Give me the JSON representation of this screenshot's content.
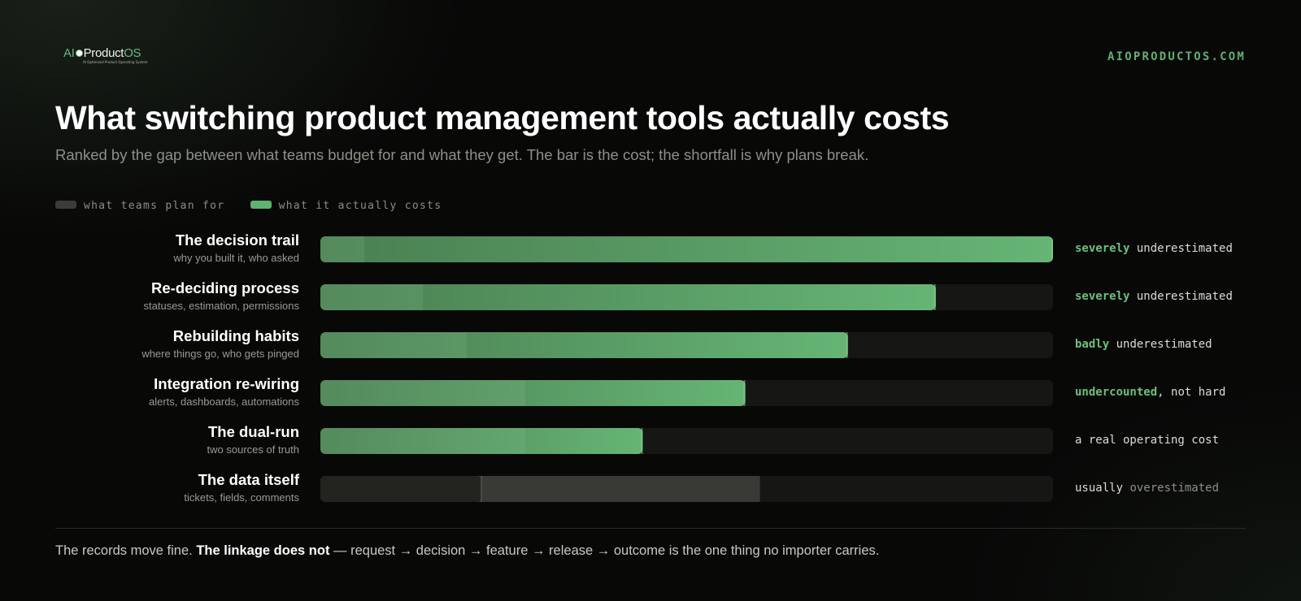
{
  "header": {
    "logo": {
      "ai": "AI",
      "product": "Product",
      "os": "OS",
      "tagline": "AI Optimized Product Operating System"
    },
    "site": "AIOPRODUCTOS.COM"
  },
  "chart_data": {
    "type": "bar",
    "title": "What switching product management tools actually costs",
    "subtitle": "Ranked by the gap between what teams budget for and what they get. The bar is the cost; the shortfall is why plans break.",
    "legend": [
      "what teams plan for",
      "what it actually costs"
    ],
    "legend_placement": "top-left",
    "xlim": [
      0,
      100
    ],
    "series": [
      {
        "name": "what teams plan for",
        "values": [
          6,
          14,
          20,
          28,
          28,
          60
        ]
      },
      {
        "name": "what it actually costs",
        "values": [
          100,
          84,
          72,
          58,
          44,
          22
        ]
      }
    ],
    "categories": [
      "The decision trail",
      "Re-deciding process",
      "Rebuilding habits",
      "Integration re-wiring",
      "The dual-run",
      "The data itself"
    ],
    "rows": [
      {
        "name": "The decision trail",
        "sub": "why you built it, who asked",
        "plan": 6,
        "actual": 100,
        "verdict_em": "severely",
        "verdict_rest": " underestimated",
        "tone": "under"
      },
      {
        "name": "Re-deciding process",
        "sub": "statuses, estimation, permissions",
        "plan": 14,
        "actual": 84,
        "verdict_em": "severely",
        "verdict_rest": " underestimated",
        "tone": "under"
      },
      {
        "name": "Rebuilding habits",
        "sub": "where things go, who gets pinged",
        "plan": 20,
        "actual": 72,
        "verdict_em": "badly",
        "verdict_rest": " underestimated",
        "tone": "under"
      },
      {
        "name": "Integration re-wiring",
        "sub": "alerts, dashboards, automations",
        "plan": 28,
        "actual": 58,
        "verdict_em": "undercounted",
        "verdict_rest": ", not hard",
        "tone": "under"
      },
      {
        "name": "The dual-run",
        "sub": "two sources of truth",
        "plan": 28,
        "actual": 44,
        "verdict_em": "",
        "verdict_rest": "a real operating cost",
        "tone": "neutral"
      },
      {
        "name": "The data itself",
        "sub": "tickets, fields, comments",
        "plan": 60,
        "actual": 22,
        "verdict_em": "usually",
        "verdict_rest": " overestimated",
        "tone": "over"
      }
    ]
  },
  "footer": {
    "lead": "The records move fine. ",
    "bold": "The linkage does not",
    "tail": " — request → decision → feature → release → outcome is the one thing no importer carries."
  },
  "colors": {
    "accent": "#5fb071",
    "bar_track": "#161614",
    "plan_bar": "#3b3b37",
    "actual_start": "#4a7f52",
    "actual_end": "#66b575"
  }
}
